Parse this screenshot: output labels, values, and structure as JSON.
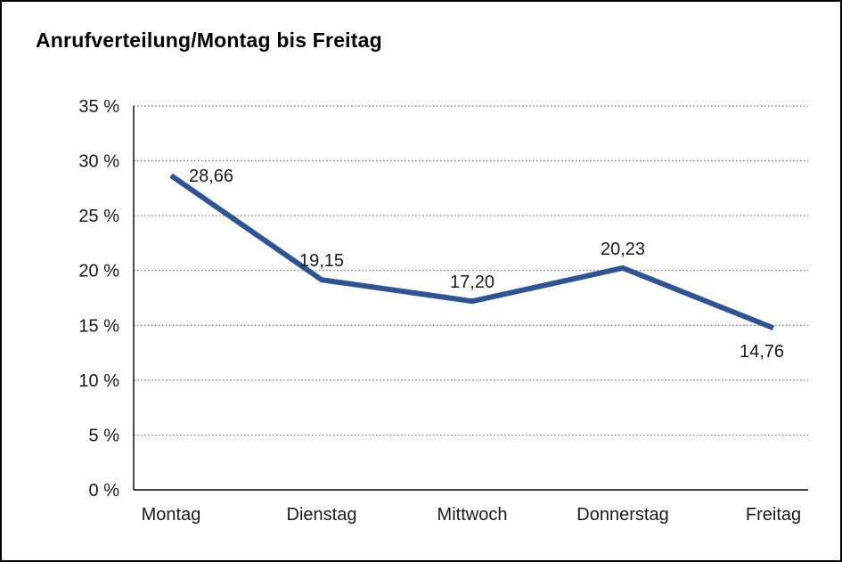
{
  "chart_data": {
    "type": "line",
    "title": "Anrufverteilung/Montag bis Freitag",
    "categories": [
      "Montag",
      "Dienstag",
      "Mittwoch",
      "Donnerstag",
      "Freitag"
    ],
    "values": [
      28.66,
      19.15,
      17.2,
      20.23,
      14.76
    ],
    "point_labels": [
      "28,66",
      "19,15",
      "17,20",
      "20,23",
      "14,76"
    ],
    "series_name": "Anrufverteilung",
    "xlabel": "",
    "ylabel": "",
    "ylim": [
      0,
      35
    ],
    "ytick_step": 5,
    "ytick_labels": [
      "0 %",
      "5 %",
      "10 %",
      "15 %",
      "20 %",
      "25 %",
      "30 %",
      "35 %"
    ],
    "grid": "horizontal-dotted",
    "legend": "none",
    "line_color": "#2F5491",
    "text_color": "#1a1a1a",
    "background_color": "#ffffff"
  }
}
